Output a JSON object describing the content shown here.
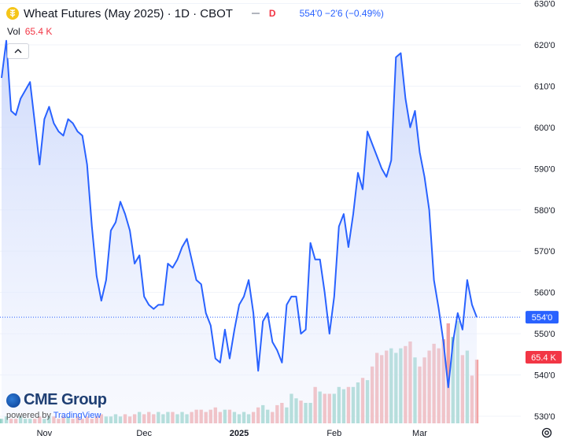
{
  "header": {
    "title": "Wheat Futures (May 2025) · 1D · CBOT",
    "badge": "D",
    "quote": "554'0  −2'6 (−0.49%)",
    "vol_label": "Vol",
    "vol_value": "65.4 K"
  },
  "logo": {
    "brand": "CME Group",
    "powered_prefix": "powered by",
    "powered_brand": "TradingView"
  },
  "colors": {
    "line": "#2962ff",
    "fill_top": "#c9d6fb",
    "fill_bottom": "#eef2fe",
    "vol_up": "#8fd1c4",
    "vol_down": "#f2a3a3",
    "price_badge": "#2962ff",
    "vol_badge": "#f23645",
    "grid": "#f0f3fa",
    "axis_text": "#131722"
  },
  "chart_data": {
    "type": "area",
    "y_ticks": [
      "530'0",
      "540'0",
      "550'0",
      "560'0",
      "570'0",
      "580'0",
      "590'0",
      "600'0",
      "610'0",
      "620'0",
      "630'0"
    ],
    "ylim": [
      528,
      630
    ],
    "x_ticks": [
      {
        "label": "Nov",
        "i": 9
      },
      {
        "label": "Dec",
        "i": 30
      },
      {
        "label": "2025",
        "i": 50
      },
      {
        "label": "Feb",
        "i": 70
      },
      {
        "label": "Mar",
        "i": 88
      }
    ],
    "last_price": 554,
    "last_price_label": "554'0",
    "last_volume_label": "65.4 K",
    "prices": [
      612,
      621,
      604,
      603,
      607,
      609,
      611,
      601,
      591,
      602,
      605,
      601,
      599,
      598,
      602,
      601,
      599,
      598,
      591,
      576,
      564,
      558,
      563,
      575,
      577,
      582,
      579,
      575,
      567,
      569,
      559,
      557,
      556,
      557,
      557,
      567,
      566,
      568,
      571,
      573,
      568,
      563,
      562,
      555,
      552,
      544,
      543,
      551,
      544,
      551,
      557,
      559,
      563,
      555,
      541,
      553,
      555,
      548,
      546,
      543,
      557,
      559,
      559,
      550,
      551,
      572,
      568,
      568,
      560,
      550,
      559,
      576,
      579,
      571,
      579,
      589,
      585,
      599,
      596,
      593,
      590,
      588,
      592,
      617,
      618,
      607,
      600,
      604,
      594,
      588,
      580,
      563,
      556,
      548,
      537,
      548,
      555,
      551,
      563,
      557,
      554
    ],
    "volumes": [
      2,
      3,
      2,
      2,
      3,
      2,
      2,
      2,
      3,
      2,
      3,
      3,
      2,
      3,
      3,
      2,
      3,
      2,
      3,
      2,
      3,
      4,
      3,
      3,
      4,
      3,
      4,
      3,
      4,
      5,
      4,
      5,
      4,
      5,
      4,
      5,
      5,
      4,
      5,
      4,
      5,
      6,
      6,
      5,
      6,
      7,
      5,
      6,
      6,
      5,
      4,
      5,
      4,
      5,
      7,
      8,
      6,
      5,
      8,
      9,
      7,
      13,
      11,
      10,
      9,
      9,
      16,
      14,
      13,
      13,
      13,
      16,
      15,
      16,
      16,
      18,
      20,
      19,
      25,
      31,
      30,
      32,
      33,
      31,
      33,
      34,
      36,
      29,
      25,
      29,
      32,
      35,
      33,
      37,
      44,
      38,
      45,
      30,
      32,
      21,
      28
    ]
  }
}
